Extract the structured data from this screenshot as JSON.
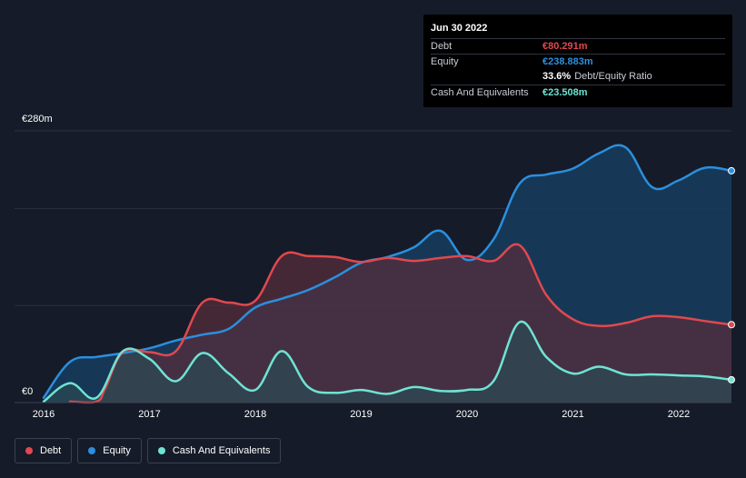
{
  "colors": {
    "debt": "#e0484f",
    "equity": "#2b8fde",
    "cash": "#6fe3d3",
    "grid": "#2a3140",
    "debt_fill": "#5a2e3c",
    "equity_fill": "#163d5e",
    "cash_fill": "#2b4a52"
  },
  "tooltip": {
    "date": "Jun 30 2022",
    "rows": [
      {
        "label": "Debt",
        "value": "€80.291m",
        "color": "#e0484f"
      },
      {
        "label": "Equity",
        "value": "€238.883m",
        "color": "#2b8fde"
      },
      {
        "label": "",
        "value": "33.6%",
        "suffix": "Debt/Equity Ratio",
        "color": "#ffffff"
      },
      {
        "label": "Cash And Equivalents",
        "value": "€23.508m",
        "color": "#6fe3d3"
      }
    ]
  },
  "axis": {
    "y_top_label": "€280m",
    "y_bottom_label": "€0"
  },
  "legend": [
    {
      "label": "Debt",
      "color": "#e0484f"
    },
    {
      "label": "Equity",
      "color": "#2b8fde"
    },
    {
      "label": "Cash And Equivalents",
      "color": "#6fe3d3"
    }
  ],
  "chart_data": {
    "type": "area",
    "title": "",
    "xlabel": "",
    "ylabel": "",
    "ylim": [
      0,
      280
    ],
    "xlim": [
      2016.0,
      2022.5
    ],
    "x_ticks": [
      2016,
      2017,
      2018,
      2019,
      2020,
      2021,
      2022
    ],
    "x_tick_labels": [
      "2016",
      "2017",
      "2018",
      "2019",
      "2020",
      "2021",
      "2022"
    ],
    "gridlines": [
      0,
      100,
      200,
      280
    ],
    "series": [
      {
        "name": "Debt",
        "key": "debt",
        "points": [
          [
            2016.25,
            1
          ],
          [
            2016.5,
            1
          ],
          [
            2016.58,
            14
          ],
          [
            2016.75,
            52
          ],
          [
            2017.0,
            52
          ],
          [
            2017.25,
            53
          ],
          [
            2017.5,
            103
          ],
          [
            2017.75,
            103
          ],
          [
            2018.0,
            105
          ],
          [
            2018.25,
            151
          ],
          [
            2018.5,
            151
          ],
          [
            2018.75,
            150
          ],
          [
            2019.0,
            145
          ],
          [
            2019.25,
            149
          ],
          [
            2019.5,
            146
          ],
          [
            2019.75,
            149
          ],
          [
            2020.0,
            151
          ],
          [
            2020.25,
            146
          ],
          [
            2020.5,
            162
          ],
          [
            2020.75,
            111
          ],
          [
            2021.0,
            86
          ],
          [
            2021.25,
            79
          ],
          [
            2021.5,
            82
          ],
          [
            2021.75,
            89
          ],
          [
            2022.0,
            88
          ],
          [
            2022.25,
            84
          ],
          [
            2022.5,
            80.291
          ]
        ]
      },
      {
        "name": "Equity",
        "key": "equity",
        "points": [
          [
            2016.0,
            5
          ],
          [
            2016.25,
            42
          ],
          [
            2016.5,
            47
          ],
          [
            2016.75,
            51
          ],
          [
            2017.0,
            56
          ],
          [
            2017.25,
            64
          ],
          [
            2017.5,
            70
          ],
          [
            2017.75,
            76
          ],
          [
            2018.0,
            98
          ],
          [
            2018.25,
            107
          ],
          [
            2018.5,
            116
          ],
          [
            2018.75,
            129
          ],
          [
            2019.0,
            144
          ],
          [
            2019.25,
            150
          ],
          [
            2019.5,
            160
          ],
          [
            2019.75,
            177
          ],
          [
            2020.0,
            147
          ],
          [
            2020.25,
            168
          ],
          [
            2020.5,
            226
          ],
          [
            2020.75,
            235
          ],
          [
            2021.0,
            241
          ],
          [
            2021.25,
            257
          ],
          [
            2021.5,
            263
          ],
          [
            2021.75,
            222
          ],
          [
            2022.0,
            229
          ],
          [
            2022.25,
            242
          ],
          [
            2022.5,
            238.883
          ]
        ]
      },
      {
        "name": "Cash And Equivalents",
        "key": "cash",
        "points": [
          [
            2016.0,
            1
          ],
          [
            2016.25,
            20
          ],
          [
            2016.5,
            5
          ],
          [
            2016.75,
            53
          ],
          [
            2017.0,
            45
          ],
          [
            2017.25,
            22
          ],
          [
            2017.5,
            51
          ],
          [
            2017.75,
            30
          ],
          [
            2018.0,
            13
          ],
          [
            2018.25,
            53
          ],
          [
            2018.5,
            16
          ],
          [
            2018.75,
            10
          ],
          [
            2019.0,
            13
          ],
          [
            2019.25,
            9
          ],
          [
            2019.5,
            16
          ],
          [
            2019.75,
            12
          ],
          [
            2020.0,
            13
          ],
          [
            2020.25,
            22
          ],
          [
            2020.5,
            83
          ],
          [
            2020.75,
            47
          ],
          [
            2021.0,
            30
          ],
          [
            2021.25,
            37
          ],
          [
            2021.5,
            29
          ],
          [
            2021.75,
            29
          ],
          [
            2022.0,
            28
          ],
          [
            2022.25,
            27
          ],
          [
            2022.5,
            23.508
          ]
        ]
      }
    ]
  }
}
